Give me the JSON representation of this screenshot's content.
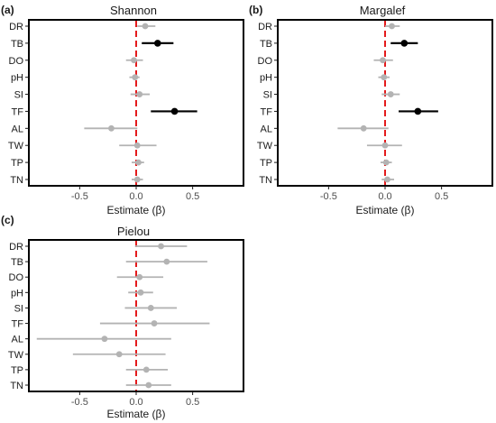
{
  "figure": {
    "colors": {
      "frame": "#000000",
      "nonsignificant": "#b3b3b3",
      "significant": "#000000",
      "zero_line": "#e41a1c",
      "text": "#1a1a1a"
    }
  },
  "chart_data": [
    {
      "type": "scatter",
      "panel_label": "(a)",
      "title": "Shannon",
      "xlabel": "Estimate (β)",
      "ylabel": "",
      "xlim": [
        -0.95,
        0.95
      ],
      "xticks": [
        -0.5,
        0.0,
        0.5
      ],
      "xtick_labels": [
        "-0.5",
        "0.0",
        "0.5"
      ],
      "reference_line": 0,
      "categories": [
        "DR",
        "TB",
        "DO",
        "pH",
        "SI",
        "TF",
        "AL",
        "TW",
        "TP",
        "TN"
      ],
      "points": [
        {
          "label": "DR",
          "estimate": 0.08,
          "lower": 0.01,
          "upper": 0.17,
          "significant": false
        },
        {
          "label": "TB",
          "estimate": 0.19,
          "lower": 0.05,
          "upper": 0.33,
          "significant": true
        },
        {
          "label": "DO",
          "estimate": -0.02,
          "lower": -0.09,
          "upper": 0.06,
          "significant": false
        },
        {
          "label": "pH",
          "estimate": -0.01,
          "lower": -0.06,
          "upper": 0.03,
          "significant": false
        },
        {
          "label": "SI",
          "estimate": 0.03,
          "lower": -0.05,
          "upper": 0.12,
          "significant": false
        },
        {
          "label": "TF",
          "estimate": 0.34,
          "lower": 0.13,
          "upper": 0.54,
          "significant": true
        },
        {
          "label": "AL",
          "estimate": -0.22,
          "lower": -0.46,
          "upper": 0.01,
          "significant": false
        },
        {
          "label": "TW",
          "estimate": 0.01,
          "lower": -0.15,
          "upper": 0.18,
          "significant": false
        },
        {
          "label": "TP",
          "estimate": 0.02,
          "lower": -0.04,
          "upper": 0.07,
          "significant": false
        },
        {
          "label": "TN",
          "estimate": 0.01,
          "lower": -0.04,
          "upper": 0.06,
          "significant": false
        }
      ],
      "grid": false,
      "legend": "none"
    },
    {
      "type": "scatter",
      "panel_label": "(b)",
      "title": "Margalef",
      "xlabel": "Estimate (β)",
      "ylabel": "",
      "xlim": [
        -0.95,
        0.95
      ],
      "xticks": [
        -0.5,
        0.0,
        0.5
      ],
      "xtick_labels": [
        "-0.5",
        "0.0",
        "0.5"
      ],
      "reference_line": 0,
      "categories": [
        "DR",
        "TB",
        "DO",
        "pH",
        "SI",
        "TF",
        "AL",
        "TW",
        "TP",
        "TN"
      ],
      "points": [
        {
          "label": "DR",
          "estimate": 0.06,
          "lower": 0.0,
          "upper": 0.13,
          "significant": false
        },
        {
          "label": "TB",
          "estimate": 0.17,
          "lower": 0.05,
          "upper": 0.29,
          "significant": true
        },
        {
          "label": "DO",
          "estimate": -0.02,
          "lower": -0.1,
          "upper": 0.07,
          "significant": false
        },
        {
          "label": "pH",
          "estimate": -0.01,
          "lower": -0.06,
          "upper": 0.04,
          "significant": false
        },
        {
          "label": "SI",
          "estimate": 0.05,
          "lower": -0.03,
          "upper": 0.13,
          "significant": false
        },
        {
          "label": "TF",
          "estimate": 0.29,
          "lower": 0.12,
          "upper": 0.47,
          "significant": true
        },
        {
          "label": "AL",
          "estimate": -0.19,
          "lower": -0.42,
          "upper": 0.03,
          "significant": false
        },
        {
          "label": "TW",
          "estimate": 0.0,
          "lower": -0.16,
          "upper": 0.15,
          "significant": false
        },
        {
          "label": "TP",
          "estimate": 0.01,
          "lower": -0.04,
          "upper": 0.06,
          "significant": false
        },
        {
          "label": "TN",
          "estimate": 0.02,
          "lower": -0.03,
          "upper": 0.08,
          "significant": false
        }
      ],
      "grid": false,
      "legend": "none"
    },
    {
      "type": "scatter",
      "panel_label": "(c)",
      "title": "Pielou",
      "xlabel": "Estimate (β)",
      "ylabel": "",
      "xlim": [
        -0.95,
        0.95
      ],
      "xticks": [
        -0.5,
        0.0,
        0.5
      ],
      "xtick_labels": [
        "-0.5",
        "0.0",
        "0.5"
      ],
      "reference_line": 0,
      "categories": [
        "DR",
        "TB",
        "DO",
        "pH",
        "SI",
        "TF",
        "AL",
        "TW",
        "TP",
        "TN"
      ],
      "points": [
        {
          "label": "DR",
          "estimate": 0.22,
          "lower": -0.01,
          "upper": 0.45,
          "significant": false
        },
        {
          "label": "TB",
          "estimate": 0.27,
          "lower": -0.09,
          "upper": 0.63,
          "significant": false
        },
        {
          "label": "DO",
          "estimate": 0.03,
          "lower": -0.17,
          "upper": 0.24,
          "significant": false
        },
        {
          "label": "pH",
          "estimate": 0.04,
          "lower": -0.07,
          "upper": 0.15,
          "significant": false
        },
        {
          "label": "SI",
          "estimate": 0.13,
          "lower": -0.1,
          "upper": 0.36,
          "significant": false
        },
        {
          "label": "TF",
          "estimate": 0.16,
          "lower": -0.32,
          "upper": 0.65,
          "significant": false
        },
        {
          "label": "AL",
          "estimate": -0.28,
          "lower": -0.88,
          "upper": 0.31,
          "significant": false
        },
        {
          "label": "TW",
          "estimate": -0.15,
          "lower": -0.56,
          "upper": 0.26,
          "significant": false
        },
        {
          "label": "TP",
          "estimate": 0.09,
          "lower": -0.09,
          "upper": 0.28,
          "significant": false
        },
        {
          "label": "TN",
          "estimate": 0.11,
          "lower": -0.09,
          "upper": 0.31,
          "significant": false
        }
      ],
      "grid": false,
      "legend": "none"
    }
  ]
}
